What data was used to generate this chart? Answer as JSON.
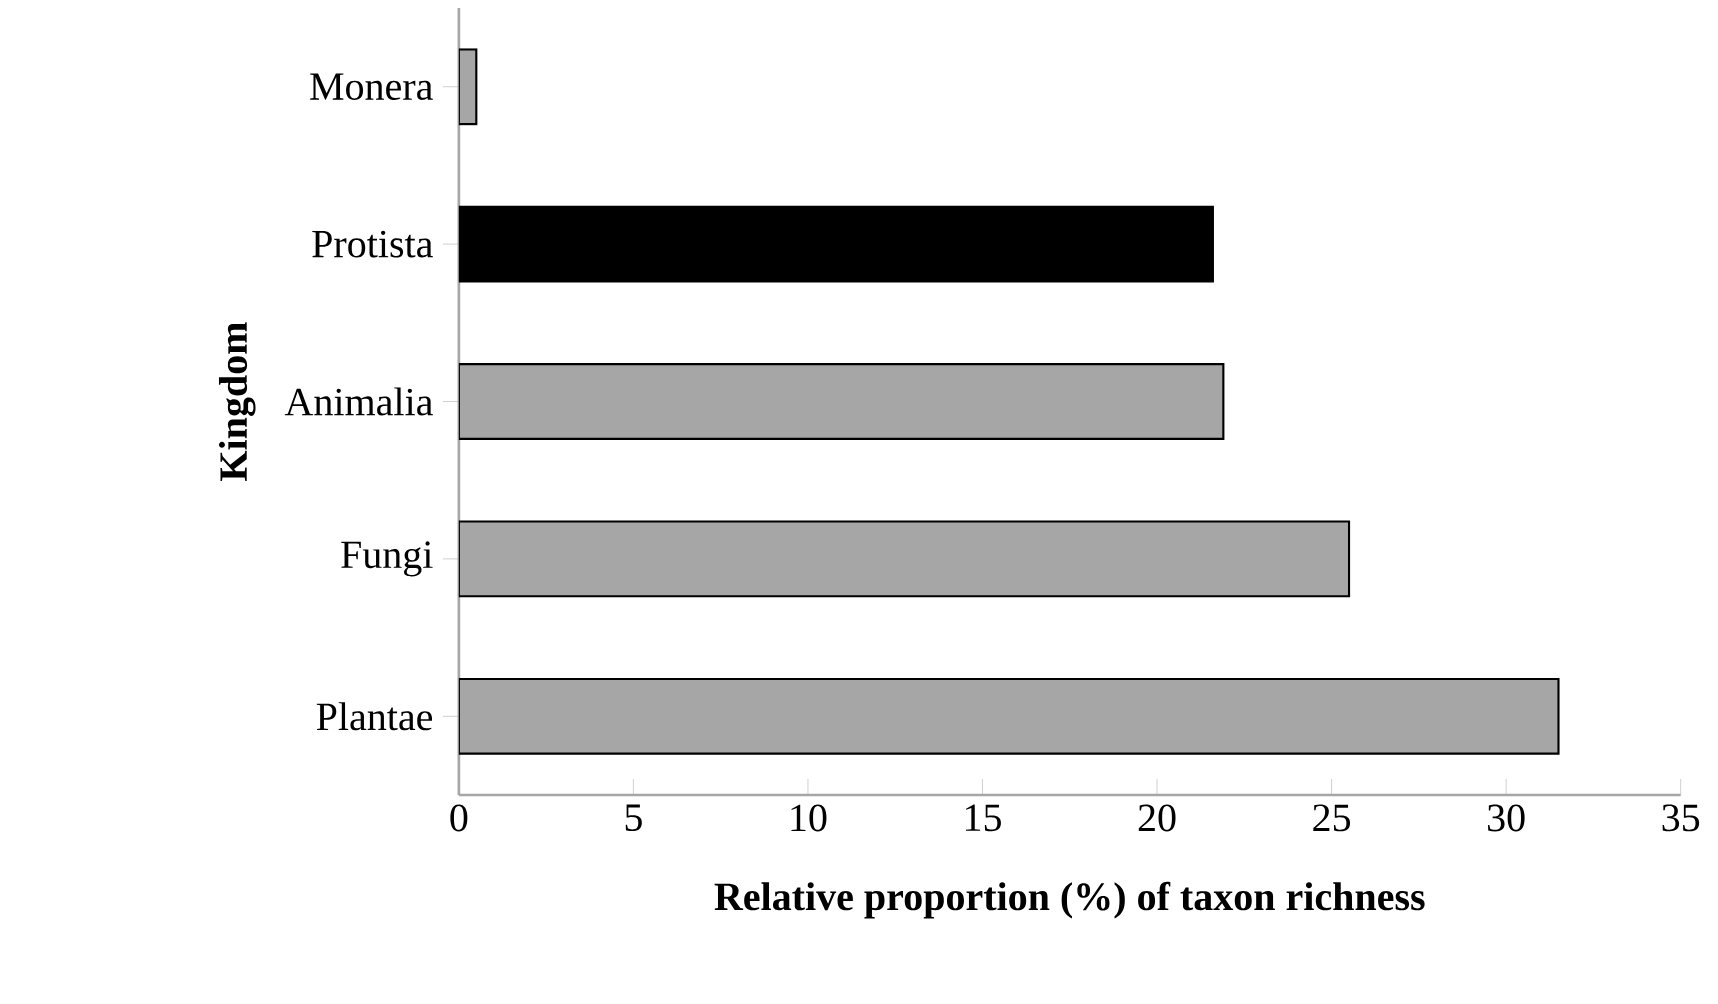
{
  "chart_data": {
    "type": "bar",
    "orientation": "horizontal",
    "xlabel": "Relative proportion (%) of taxon richness",
    "ylabel": "Kingdom",
    "categories": [
      "Monera",
      "Protista",
      "Animalia",
      "Fungi",
      "Plantae"
    ],
    "values": [
      0.5,
      21.6,
      21.9,
      25.5,
      31.5
    ],
    "colors": [
      "#a6a6a6",
      "#000000",
      "#a6a6a6",
      "#a6a6a6",
      "#a6a6a6"
    ],
    "xlim": [
      0,
      35
    ],
    "xticks": [
      0,
      5,
      10,
      15,
      20,
      25,
      30,
      35
    ],
    "grid": false
  }
}
